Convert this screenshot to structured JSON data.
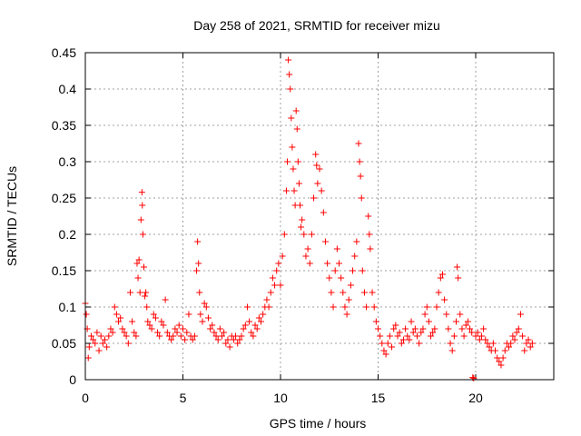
{
  "chart_data": {
    "type": "scatter",
    "title": "Day 258 of 2021, SRMTID for receiver mizu",
    "xlabel": "GPS time / hours",
    "ylabel": "SRMTID / TECUs",
    "xlim": [
      0,
      24
    ],
    "ylim": [
      0,
      0.45
    ],
    "xticks": [
      0,
      5,
      10,
      15,
      20
    ],
    "xtick_labels": [
      "0",
      "5",
      "10",
      "15",
      "20"
    ],
    "yticks": [
      0,
      0.05,
      0.1,
      0.15,
      0.2,
      0.25,
      0.3,
      0.35,
      0.4,
      0.45
    ],
    "ytick_labels": [
      "0",
      "0.05",
      "0.1",
      "0.15",
      "0.2",
      "0.25",
      "0.3",
      "0.35",
      "0.4",
      "0.45"
    ],
    "grid": true,
    "marker": "plus",
    "color": "#ff0000",
    "series": [
      {
        "name": "SRMTID",
        "points": [
          [
            0.0,
            0.105
          ],
          [
            0.05,
            0.09
          ],
          [
            0.1,
            0.07
          ],
          [
            0.15,
            0.03
          ],
          [
            0.2,
            0.045
          ],
          [
            0.3,
            0.06
          ],
          [
            0.4,
            0.055
          ],
          [
            0.5,
            0.05
          ],
          [
            0.6,
            0.065
          ],
          [
            0.7,
            0.04
          ],
          [
            0.8,
            0.06
          ],
          [
            0.9,
            0.05
          ],
          [
            1.0,
            0.055
          ],
          [
            1.1,
            0.045
          ],
          [
            1.2,
            0.06
          ],
          [
            1.3,
            0.07
          ],
          [
            1.4,
            0.065
          ],
          [
            1.5,
            0.1
          ],
          [
            1.6,
            0.09
          ],
          [
            1.7,
            0.08
          ],
          [
            1.8,
            0.085
          ],
          [
            1.9,
            0.07
          ],
          [
            2.0,
            0.065
          ],
          [
            2.1,
            0.06
          ],
          [
            2.2,
            0.05
          ],
          [
            2.3,
            0.12
          ],
          [
            2.4,
            0.08
          ],
          [
            2.5,
            0.065
          ],
          [
            2.6,
            0.06
          ],
          [
            2.65,
            0.16
          ],
          [
            2.7,
            0.14
          ],
          [
            2.75,
            0.165
          ],
          [
            2.8,
            0.12
          ],
          [
            2.85,
            0.22
          ],
          [
            2.9,
            0.258
          ],
          [
            2.92,
            0.24
          ],
          [
            2.95,
            0.2
          ],
          [
            3.0,
            0.155
          ],
          [
            3.05,
            0.115
          ],
          [
            3.1,
            0.12
          ],
          [
            3.15,
            0.1
          ],
          [
            3.2,
            0.08
          ],
          [
            3.3,
            0.075
          ],
          [
            3.4,
            0.07
          ],
          [
            3.5,
            0.09
          ],
          [
            3.6,
            0.085
          ],
          [
            3.7,
            0.065
          ],
          [
            3.8,
            0.06
          ],
          [
            3.9,
            0.08
          ],
          [
            4.0,
            0.075
          ],
          [
            4.1,
            0.11
          ],
          [
            4.2,
            0.065
          ],
          [
            4.3,
            0.06
          ],
          [
            4.4,
            0.055
          ],
          [
            4.5,
            0.06
          ],
          [
            4.6,
            0.07
          ],
          [
            4.7,
            0.065
          ],
          [
            4.8,
            0.075
          ],
          [
            4.9,
            0.06
          ],
          [
            5.0,
            0.07
          ],
          [
            5.1,
            0.055
          ],
          [
            5.2,
            0.065
          ],
          [
            5.3,
            0.09
          ],
          [
            5.4,
            0.06
          ],
          [
            5.5,
            0.055
          ],
          [
            5.6,
            0.06
          ],
          [
            5.7,
            0.15
          ],
          [
            5.75,
            0.19
          ],
          [
            5.8,
            0.16
          ],
          [
            5.85,
            0.12
          ],
          [
            5.9,
            0.09
          ],
          [
            6.0,
            0.08
          ],
          [
            6.1,
            0.105
          ],
          [
            6.2,
            0.1
          ],
          [
            6.3,
            0.085
          ],
          [
            6.4,
            0.07
          ],
          [
            6.5,
            0.075
          ],
          [
            6.6,
            0.065
          ],
          [
            6.7,
            0.06
          ],
          [
            6.8,
            0.055
          ],
          [
            6.9,
            0.07
          ],
          [
            7.0,
            0.06
          ],
          [
            7.1,
            0.065
          ],
          [
            7.2,
            0.05
          ],
          [
            7.3,
            0.055
          ],
          [
            7.4,
            0.045
          ],
          [
            7.5,
            0.06
          ],
          [
            7.6,
            0.055
          ],
          [
            7.7,
            0.06
          ],
          [
            7.8,
            0.05
          ],
          [
            7.9,
            0.055
          ],
          [
            8.0,
            0.06
          ],
          [
            8.1,
            0.07
          ],
          [
            8.2,
            0.075
          ],
          [
            8.3,
            0.1
          ],
          [
            8.4,
            0.08
          ],
          [
            8.5,
            0.065
          ],
          [
            8.6,
            0.06
          ],
          [
            8.7,
            0.075
          ],
          [
            8.8,
            0.07
          ],
          [
            8.9,
            0.085
          ],
          [
            9.0,
            0.08
          ],
          [
            9.1,
            0.09
          ],
          [
            9.2,
            0.1
          ],
          [
            9.3,
            0.11
          ],
          [
            9.4,
            0.1
          ],
          [
            9.5,
            0.12
          ],
          [
            9.6,
            0.14
          ],
          [
            9.7,
            0.13
          ],
          [
            9.8,
            0.15
          ],
          [
            9.9,
            0.16
          ],
          [
            10.0,
            0.13
          ],
          [
            10.1,
            0.17
          ],
          [
            10.2,
            0.2
          ],
          [
            10.3,
            0.26
          ],
          [
            10.35,
            0.3
          ],
          [
            10.4,
            0.44
          ],
          [
            10.45,
            0.42
          ],
          [
            10.5,
            0.4
          ],
          [
            10.55,
            0.36
          ],
          [
            10.6,
            0.32
          ],
          [
            10.65,
            0.29
          ],
          [
            10.7,
            0.26
          ],
          [
            10.75,
            0.24
          ],
          [
            10.8,
            0.37
          ],
          [
            10.85,
            0.345
          ],
          [
            10.9,
            0.3
          ],
          [
            10.95,
            0.27
          ],
          [
            11.0,
            0.24
          ],
          [
            11.05,
            0.21
          ],
          [
            11.1,
            0.22
          ],
          [
            11.2,
            0.2
          ],
          [
            11.3,
            0.17
          ],
          [
            11.4,
            0.18
          ],
          [
            11.5,
            0.16
          ],
          [
            11.6,
            0.2
          ],
          [
            11.7,
            0.25
          ],
          [
            11.8,
            0.31
          ],
          [
            11.85,
            0.295
          ],
          [
            11.9,
            0.27
          ],
          [
            12.0,
            0.29
          ],
          [
            12.1,
            0.26
          ],
          [
            12.2,
            0.23
          ],
          [
            12.3,
            0.19
          ],
          [
            12.4,
            0.16
          ],
          [
            12.5,
            0.14
          ],
          [
            12.6,
            0.12
          ],
          [
            12.7,
            0.1
          ],
          [
            12.8,
            0.15
          ],
          [
            12.9,
            0.18
          ],
          [
            13.0,
            0.16
          ],
          [
            13.1,
            0.14
          ],
          [
            13.2,
            0.12
          ],
          [
            13.3,
            0.1
          ],
          [
            13.4,
            0.09
          ],
          [
            13.5,
            0.11
          ],
          [
            13.6,
            0.13
          ],
          [
            13.7,
            0.15
          ],
          [
            13.8,
            0.17
          ],
          [
            13.9,
            0.19
          ],
          [
            14.0,
            0.325
          ],
          [
            14.05,
            0.3
          ],
          [
            14.1,
            0.28
          ],
          [
            14.15,
            0.25
          ],
          [
            14.2,
            0.15
          ],
          [
            14.3,
            0.12
          ],
          [
            14.4,
            0.1
          ],
          [
            14.5,
            0.225
          ],
          [
            14.55,
            0.2
          ],
          [
            14.6,
            0.18
          ],
          [
            14.7,
            0.12
          ],
          [
            14.8,
            0.1
          ],
          [
            14.9,
            0.08
          ],
          [
            15.0,
            0.07
          ],
          [
            15.1,
            0.06
          ],
          [
            15.2,
            0.05
          ],
          [
            15.3,
            0.04
          ],
          [
            15.4,
            0.035
          ],
          [
            15.5,
            0.05
          ],
          [
            15.6,
            0.06
          ],
          [
            15.7,
            0.045
          ],
          [
            15.8,
            0.07
          ],
          [
            15.9,
            0.075
          ],
          [
            16.0,
            0.06
          ],
          [
            16.1,
            0.065
          ],
          [
            16.2,
            0.05
          ],
          [
            16.3,
            0.055
          ],
          [
            16.4,
            0.07
          ],
          [
            16.5,
            0.06
          ],
          [
            16.6,
            0.055
          ],
          [
            16.7,
            0.08
          ],
          [
            16.8,
            0.065
          ],
          [
            16.9,
            0.07
          ],
          [
            17.0,
            0.06
          ],
          [
            17.1,
            0.05
          ],
          [
            17.2,
            0.065
          ],
          [
            17.3,
            0.07
          ],
          [
            17.4,
            0.09
          ],
          [
            17.5,
            0.1
          ],
          [
            17.6,
            0.08
          ],
          [
            17.7,
            0.06
          ],
          [
            17.8,
            0.065
          ],
          [
            17.9,
            0.07
          ],
          [
            18.0,
            0.1
          ],
          [
            18.1,
            0.12
          ],
          [
            18.2,
            0.14
          ],
          [
            18.3,
            0.145
          ],
          [
            18.4,
            0.11
          ],
          [
            18.5,
            0.09
          ],
          [
            18.6,
            0.07
          ],
          [
            18.7,
            0.05
          ],
          [
            18.8,
            0.04
          ],
          [
            18.9,
            0.06
          ],
          [
            19.0,
            0.08
          ],
          [
            19.05,
            0.155
          ],
          [
            19.1,
            0.14
          ],
          [
            19.2,
            0.09
          ],
          [
            19.3,
            0.07
          ],
          [
            19.4,
            0.06
          ],
          [
            19.5,
            0.075
          ],
          [
            19.6,
            0.08
          ],
          [
            19.7,
            0.07
          ],
          [
            19.8,
            0.065
          ],
          [
            19.85,
            0.003
          ],
          [
            19.9,
            0.002
          ],
          [
            20.0,
            0.06
          ],
          [
            20.1,
            0.065
          ],
          [
            20.2,
            0.055
          ],
          [
            20.3,
            0.06
          ],
          [
            20.4,
            0.07
          ],
          [
            20.5,
            0.055
          ],
          [
            20.6,
            0.05
          ],
          [
            20.7,
            0.045
          ],
          [
            20.8,
            0.04
          ],
          [
            20.9,
            0.05
          ],
          [
            21.0,
            0.04
          ],
          [
            21.1,
            0.03
          ],
          [
            21.2,
            0.025
          ],
          [
            21.3,
            0.02
          ],
          [
            21.4,
            0.03
          ],
          [
            21.5,
            0.04
          ],
          [
            21.6,
            0.05
          ],
          [
            21.7,
            0.045
          ],
          [
            21.8,
            0.05
          ],
          [
            21.9,
            0.06
          ],
          [
            22.0,
            0.055
          ],
          [
            22.1,
            0.065
          ],
          [
            22.2,
            0.07
          ],
          [
            22.3,
            0.09
          ],
          [
            22.4,
            0.06
          ],
          [
            22.5,
            0.04
          ],
          [
            22.6,
            0.05
          ],
          [
            22.7,
            0.055
          ],
          [
            22.8,
            0.045
          ],
          [
            22.9,
            0.05
          ]
        ]
      }
    ]
  }
}
